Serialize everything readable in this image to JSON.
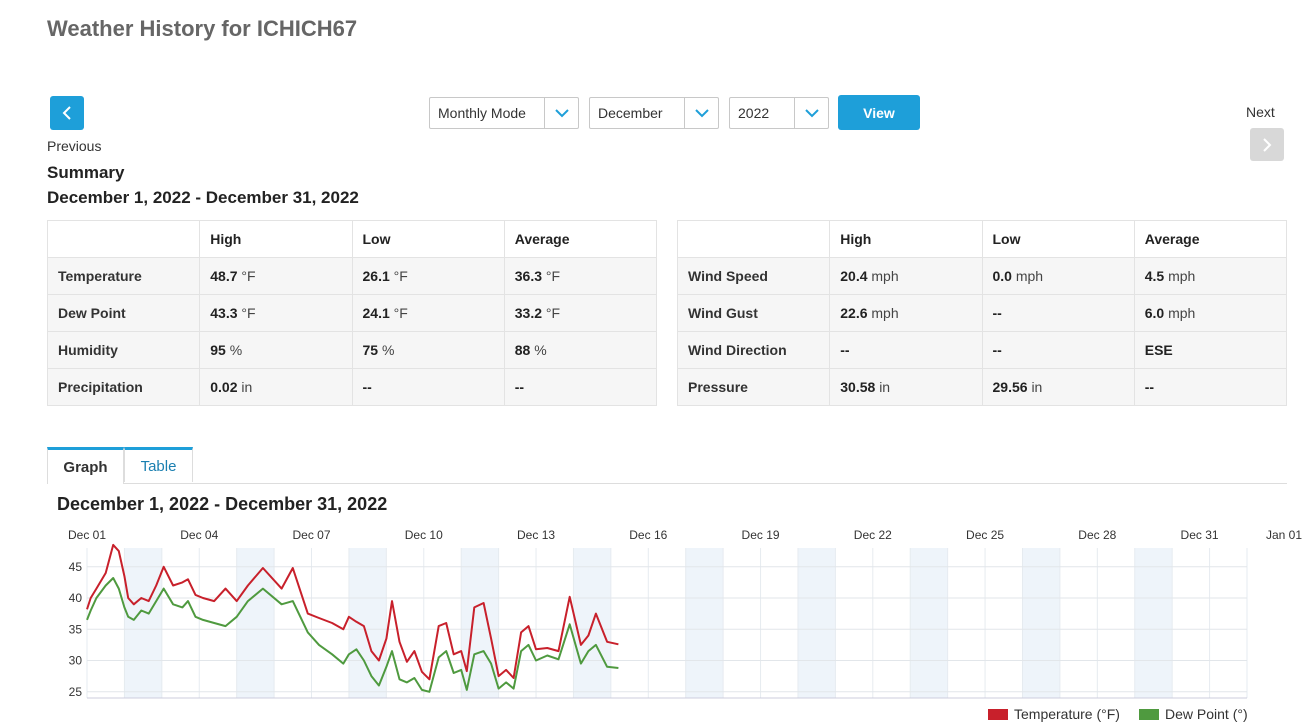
{
  "page": {
    "title": "Weather History for ICHICH67"
  },
  "nav": {
    "previous_label": "Previous",
    "next_label": "Next",
    "mode": "Monthly Mode",
    "month": "December",
    "year": "2022",
    "view_label": "View",
    "accent": "#1e9fd9"
  },
  "summary": {
    "heading": "Summary",
    "range": "December 1, 2022 - December 31, 2022",
    "columns": [
      "",
      "High",
      "Low",
      "Average"
    ],
    "left_rows": [
      {
        "label": "Temperature",
        "high": "48.7",
        "high_unit": "°F",
        "low": "26.1",
        "low_unit": "°F",
        "avg": "36.3",
        "avg_unit": "°F"
      },
      {
        "label": "Dew Point",
        "high": "43.3",
        "high_unit": "°F",
        "low": "24.1",
        "low_unit": "°F",
        "avg": "33.2",
        "avg_unit": "°F"
      },
      {
        "label": "Humidity",
        "high": "95",
        "high_unit": "%",
        "low": "75",
        "low_unit": "%",
        "avg": "88",
        "avg_unit": "%"
      },
      {
        "label": "Precipitation",
        "high": "0.02",
        "high_unit": "in",
        "low": "--",
        "low_unit": "",
        "avg": "--",
        "avg_unit": ""
      }
    ],
    "right_rows": [
      {
        "label": "Wind Speed",
        "high": "20.4",
        "high_unit": "mph",
        "low": "0.0",
        "low_unit": "mph",
        "avg": "4.5",
        "avg_unit": "mph"
      },
      {
        "label": "Wind Gust",
        "high": "22.6",
        "high_unit": "mph",
        "low": "--",
        "low_unit": "",
        "avg": "6.0",
        "avg_unit": "mph"
      },
      {
        "label": "Wind Direction",
        "high": "--",
        "high_unit": "",
        "low": "--",
        "low_unit": "",
        "avg": "ESE",
        "avg_unit": ""
      },
      {
        "label": "Pressure",
        "high": "30.58",
        "high_unit": "in",
        "low": "29.56",
        "low_unit": "in",
        "avg": "--",
        "avg_unit": ""
      }
    ]
  },
  "tabs": [
    "Graph",
    "Table"
  ],
  "graph": {
    "range": "December 1, 2022 - December 31, 2022"
  },
  "chart_data": {
    "type": "line",
    "x_ticks": [
      "Dec 01",
      "Dec 04",
      "Dec 07",
      "Dec 10",
      "Dec 13",
      "Dec 16",
      "Dec 19",
      "Dec 22",
      "Dec 25",
      "Dec 28",
      "Dec 31",
      "Jan 01"
    ],
    "y_ticks": [
      25,
      30,
      35,
      40,
      45
    ],
    "xlim_days": [
      0,
      31
    ],
    "ylim": [
      24,
      48
    ],
    "grid": true,
    "legend_position": "bottom-right",
    "series": [
      {
        "name": "Temperature (°F)",
        "color": "#c8202b",
        "x": [
          0,
          0.1,
          0.25,
          0.5,
          0.7,
          0.85,
          1.0,
          1.1,
          1.25,
          1.45,
          1.65,
          1.85,
          2.05,
          2.3,
          2.55,
          2.7,
          2.9,
          3.1,
          3.4,
          3.7,
          4.0,
          4.3,
          4.7,
          5.2,
          5.5,
          5.9,
          6.2,
          6.55,
          6.85,
          7.0,
          7.2,
          7.4,
          7.6,
          7.8,
          8.0,
          8.15,
          8.35,
          8.55,
          8.75,
          8.95,
          9.15,
          9.4,
          9.6,
          9.8,
          10.0,
          10.15,
          10.35,
          10.6,
          10.8,
          11.0,
          11.2,
          11.4,
          11.6,
          11.8,
          12.0,
          12.3,
          12.6,
          12.9,
          13.2,
          13.4,
          13.6,
          13.9,
          14.2
        ],
        "y": [
          38.2,
          40,
          41.5,
          44,
          48.5,
          47.5,
          43.5,
          40,
          39,
          40,
          39.5,
          42,
          45,
          42,
          42.5,
          43,
          40.5,
          40,
          39.5,
          41.5,
          39.5,
          42,
          44.8,
          41.5,
          44.8,
          37.5,
          36.8,
          36,
          35,
          37,
          36.2,
          35.5,
          31.5,
          30,
          33.5,
          39.5,
          33,
          29.8,
          31.5,
          28.2,
          27,
          35.5,
          36,
          31,
          31.5,
          28.3,
          38.5,
          39.2,
          33.5,
          27.5,
          28.5,
          27.2,
          34.5,
          35.5,
          31.8,
          32,
          31.5,
          40.2,
          32.5,
          34,
          37.5,
          33,
          32.6
        ]
      },
      {
        "name": "Dew Point (°)",
        "color": "#4f9a3f",
        "x": [
          0,
          0.1,
          0.25,
          0.5,
          0.7,
          0.85,
          1.0,
          1.1,
          1.25,
          1.45,
          1.65,
          1.85,
          2.05,
          2.3,
          2.55,
          2.7,
          2.9,
          3.1,
          3.4,
          3.7,
          4.0,
          4.3,
          4.7,
          5.2,
          5.5,
          5.9,
          6.2,
          6.55,
          6.85,
          7.0,
          7.2,
          7.4,
          7.6,
          7.8,
          8.0,
          8.15,
          8.35,
          8.55,
          8.75,
          8.95,
          9.15,
          9.4,
          9.6,
          9.8,
          10.0,
          10.15,
          10.35,
          10.6,
          10.8,
          11.0,
          11.2,
          11.4,
          11.6,
          11.8,
          12.0,
          12.3,
          12.6,
          12.9,
          13.2,
          13.4,
          13.6,
          13.9,
          14.2
        ],
        "y": [
          36.5,
          38,
          40,
          42,
          43.2,
          41.5,
          38.5,
          37,
          36.5,
          38,
          37.5,
          39.5,
          41.5,
          39,
          38.5,
          39.5,
          37,
          36.5,
          36,
          35.5,
          37,
          39.5,
          41.5,
          39,
          39.5,
          34.5,
          32.5,
          31,
          29.5,
          31,
          31.8,
          30,
          27.5,
          26,
          29,
          31.5,
          27,
          26.5,
          27.2,
          25.3,
          25,
          30.5,
          31.5,
          28,
          28.5,
          25.3,
          31,
          31.5,
          29.5,
          25.5,
          26.5,
          25.5,
          31.5,
          32.5,
          30,
          30.8,
          30.2,
          35.8,
          29.5,
          31.5,
          32.5,
          29,
          28.8
        ]
      }
    ]
  }
}
